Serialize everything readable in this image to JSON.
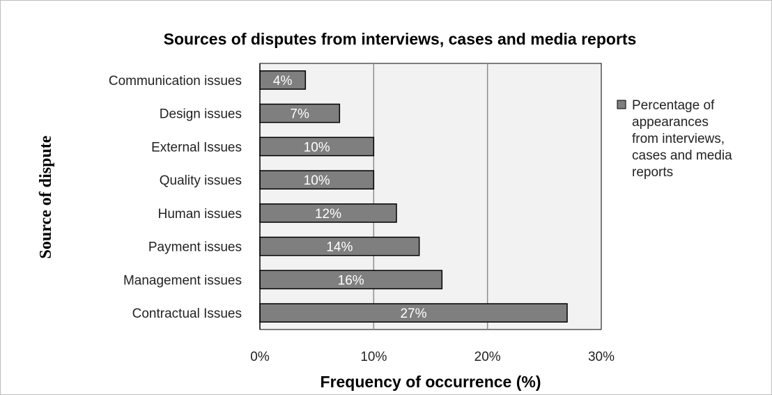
{
  "chart_data": {
    "type": "bar",
    "orientation": "horizontal",
    "title": "Sources of disputes from interviews, cases and media reports",
    "xlabel": "Frequency of occurrence (%)",
    "ylabel": "Source of dispute",
    "categories": [
      "Communication issues",
      "Design issues",
      "External Issues",
      "Quality issues",
      "Human issues",
      "Payment issues",
      "Management issues",
      "Contractual Issues"
    ],
    "series": [
      {
        "name": "Percentage of appearances from interviews, cases and media reports",
        "values": [
          4,
          7,
          10,
          10,
          12,
          14,
          16,
          27
        ],
        "data_labels": [
          "4%",
          "7%",
          "10%",
          "10%",
          "12%",
          "14%",
          "16%",
          "27%"
        ]
      }
    ],
    "xlim": [
      0,
      30
    ],
    "xticks": [
      "0%",
      "10%",
      "20%",
      "30%"
    ],
    "grid": "vertical major gridlines",
    "legend_position": "right",
    "legend_lines": [
      "Percentage of",
      "appearances",
      "from interviews,",
      "cases and media",
      "reports"
    ],
    "colors": {
      "bar_fill": "#7f7f7f",
      "bar_stroke": "#000000",
      "plot_background": "#f2f2f2",
      "gridline": "#8c8c8c"
    }
  }
}
